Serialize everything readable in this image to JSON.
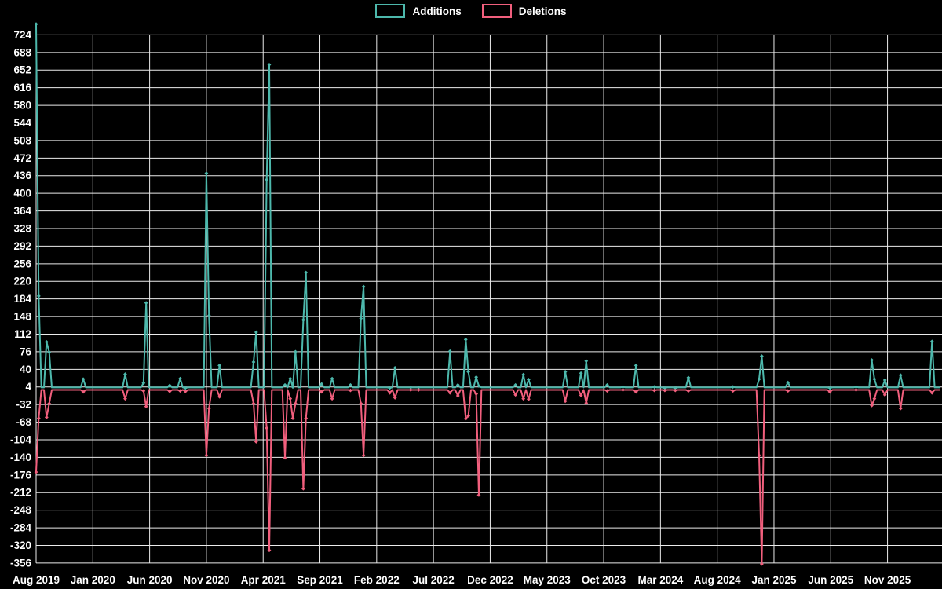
{
  "colors": {
    "background": "#000000",
    "grid": "#ffffff",
    "text": "#ffffff",
    "additions": "#4db8ac",
    "deletions": "#f15f7d"
  },
  "legend": {
    "items": [
      {
        "label": "Additions",
        "color": "#4db8ac"
      },
      {
        "label": "Deletions",
        "color": "#f15f7d"
      }
    ]
  },
  "chart_data": {
    "type": "line",
    "title": "",
    "xlabel": "",
    "ylabel": "",
    "legend_position": "top-center",
    "grid": true,
    "series": [
      {
        "name": "Additions",
        "color": "#4db8ac"
      },
      {
        "name": "Deletions",
        "color": "#f15f7d"
      }
    ],
    "x_labels": [
      "Aug 2019",
      "Jan 2020",
      "Jun 2020",
      "Nov 2020",
      "Apr 2021",
      "Sep 2021",
      "Feb 2022",
      "Jul 2022",
      "Dec 2022",
      "May 2023",
      "Oct 2023",
      "Mar 2024",
      "Aug 2024",
      "Jan 2025",
      "Jun 2025",
      "Nov 2025"
    ],
    "y_ticks": {
      "min": -356,
      "max": 724,
      "step": 36
    },
    "ylim": [
      -380,
      747
    ],
    "weeks_total": 346,
    "weeks_per_label": 21.667,
    "baseline": {
      "additions": 3,
      "deletions": -2
    },
    "events_format": [
      "week_index",
      "additions",
      "deletions"
    ],
    "events": [
      [
        0,
        746,
        -170
      ],
      [
        1,
        190,
        -60
      ],
      [
        4,
        96,
        -58
      ],
      [
        5,
        75,
        -30
      ],
      [
        18,
        20,
        -6
      ],
      [
        34,
        30,
        -20
      ],
      [
        41,
        12,
        -4
      ],
      [
        42,
        176,
        -36
      ],
      [
        51,
        7,
        -5
      ],
      [
        55,
        21,
        -4
      ],
      [
        57,
        2,
        -5
      ],
      [
        65,
        441,
        -136
      ],
      [
        66,
        150,
        -40
      ],
      [
        70,
        48,
        -16
      ],
      [
        83,
        55,
        -30
      ],
      [
        84,
        116,
        -108
      ],
      [
        88,
        428,
        -80
      ],
      [
        89,
        663,
        -330
      ],
      [
        95,
        8,
        -141
      ],
      [
        97,
        21,
        -20
      ],
      [
        98,
        4,
        -60
      ],
      [
        99,
        76,
        -30
      ],
      [
        102,
        141,
        -204
      ],
      [
        103,
        238,
        -60
      ],
      [
        109,
        10,
        -6
      ],
      [
        113,
        21,
        -20
      ],
      [
        120,
        8,
        -3
      ],
      [
        124,
        144,
        -30
      ],
      [
        125,
        209,
        -136
      ],
      [
        135,
        2,
        -8
      ],
      [
        137,
        43,
        -18
      ],
      [
        143,
        3,
        -2
      ],
      [
        146,
        3,
        -2
      ],
      [
        158,
        77,
        -8
      ],
      [
        161,
        8,
        -14
      ],
      [
        164,
        101,
        -61
      ],
      [
        165,
        35,
        -55
      ],
      [
        168,
        24,
        -10
      ],
      [
        169,
        6,
        -217
      ],
      [
        183,
        8,
        -12
      ],
      [
        186,
        29,
        -20
      ],
      [
        188,
        19,
        -21
      ],
      [
        202,
        35,
        -25
      ],
      [
        208,
        32,
        -13
      ],
      [
        210,
        57,
        -29
      ],
      [
        218,
        8,
        -4
      ],
      [
        224,
        4,
        -2
      ],
      [
        229,
        48,
        -6
      ],
      [
        236,
        4,
        -3
      ],
      [
        240,
        2,
        -3
      ],
      [
        244,
        2,
        -3
      ],
      [
        249,
        23,
        -4
      ],
      [
        266,
        4,
        -4
      ],
      [
        276,
        20,
        -136
      ],
      [
        277,
        67,
        -358
      ],
      [
        287,
        13,
        -4
      ],
      [
        303,
        2,
        -6
      ],
      [
        313,
        4,
        -2
      ],
      [
        319,
        59,
        -34
      ],
      [
        320,
        20,
        -20
      ],
      [
        324,
        18,
        -12
      ],
      [
        330,
        28,
        -40
      ],
      [
        342,
        97,
        -8
      ]
    ]
  }
}
